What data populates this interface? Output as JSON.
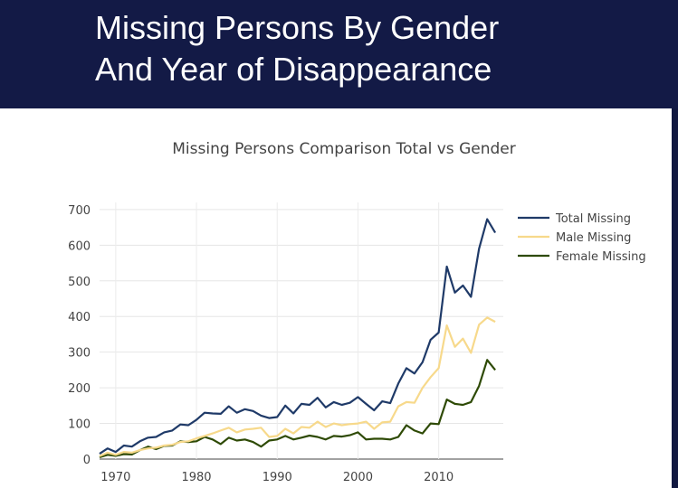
{
  "slide": {
    "title_line1": "Missing Persons By Gender",
    "title_line2": "And Year of Disappearance"
  },
  "colors": {
    "header_bg": "#131a46",
    "total": "#1f3a68",
    "male": "#f7d98b",
    "female": "#2e4a05"
  },
  "chart_data": {
    "type": "line",
    "title": "Missing Persons Comparison Total vs Gender",
    "xlabel": "",
    "ylabel": "",
    "xlim": [
      1968,
      2018
    ],
    "ylim": [
      0,
      720
    ],
    "x_ticks": [
      1970,
      1980,
      1990,
      2000,
      2010
    ],
    "y_ticks": [
      0,
      100,
      200,
      300,
      400,
      500,
      600,
      700
    ],
    "grid": true,
    "legend_position": "right",
    "x": [
      1968,
      1969,
      1970,
      1971,
      1972,
      1973,
      1974,
      1975,
      1976,
      1977,
      1978,
      1979,
      1980,
      1981,
      1982,
      1983,
      1984,
      1985,
      1986,
      1987,
      1988,
      1989,
      1990,
      1991,
      1992,
      1993,
      1994,
      1995,
      1996,
      1997,
      1998,
      1999,
      2000,
      2001,
      2002,
      2003,
      2004,
      2005,
      2006,
      2007,
      2008,
      2009,
      2010,
      2011,
      2012,
      2013,
      2014,
      2015,
      2016,
      2017
    ],
    "series": [
      {
        "name": "Total Missing",
        "color": "#1f3a68",
        "values": [
          15,
          30,
          20,
          38,
          35,
          50,
          60,
          62,
          75,
          80,
          97,
          95,
          110,
          130,
          128,
          127,
          148,
          130,
          140,
          135,
          122,
          115,
          118,
          150,
          128,
          155,
          152,
          172,
          145,
          160,
          152,
          158,
          174,
          155,
          137,
          162,
          157,
          212,
          255,
          240,
          272,
          335,
          355,
          540,
          467,
          487,
          455,
          590,
          673,
          635
        ]
      },
      {
        "name": "Male Missing",
        "color": "#f7d98b",
        "values": [
          8,
          18,
          12,
          20,
          18,
          25,
          30,
          32,
          38,
          40,
          48,
          50,
          58,
          65,
          72,
          80,
          88,
          75,
          83,
          85,
          88,
          62,
          65,
          85,
          72,
          90,
          88,
          105,
          90,
          100,
          95,
          98,
          100,
          105,
          85,
          103,
          105,
          148,
          160,
          158,
          200,
          230,
          255,
          375,
          315,
          338,
          298,
          377,
          397,
          385
        ]
      },
      {
        "name": "Female Missing",
        "color": "#2e4a05",
        "values": [
          5,
          12,
          9,
          14,
          13,
          25,
          35,
          28,
          37,
          38,
          50,
          48,
          50,
          62,
          55,
          42,
          60,
          52,
          55,
          48,
          35,
          52,
          55,
          65,
          55,
          60,
          66,
          62,
          55,
          65,
          63,
          67,
          75,
          55,
          57,
          57,
          55,
          62,
          95,
          80,
          72,
          100,
          98,
          167,
          155,
          152,
          160,
          205,
          278,
          250
        ]
      }
    ]
  }
}
